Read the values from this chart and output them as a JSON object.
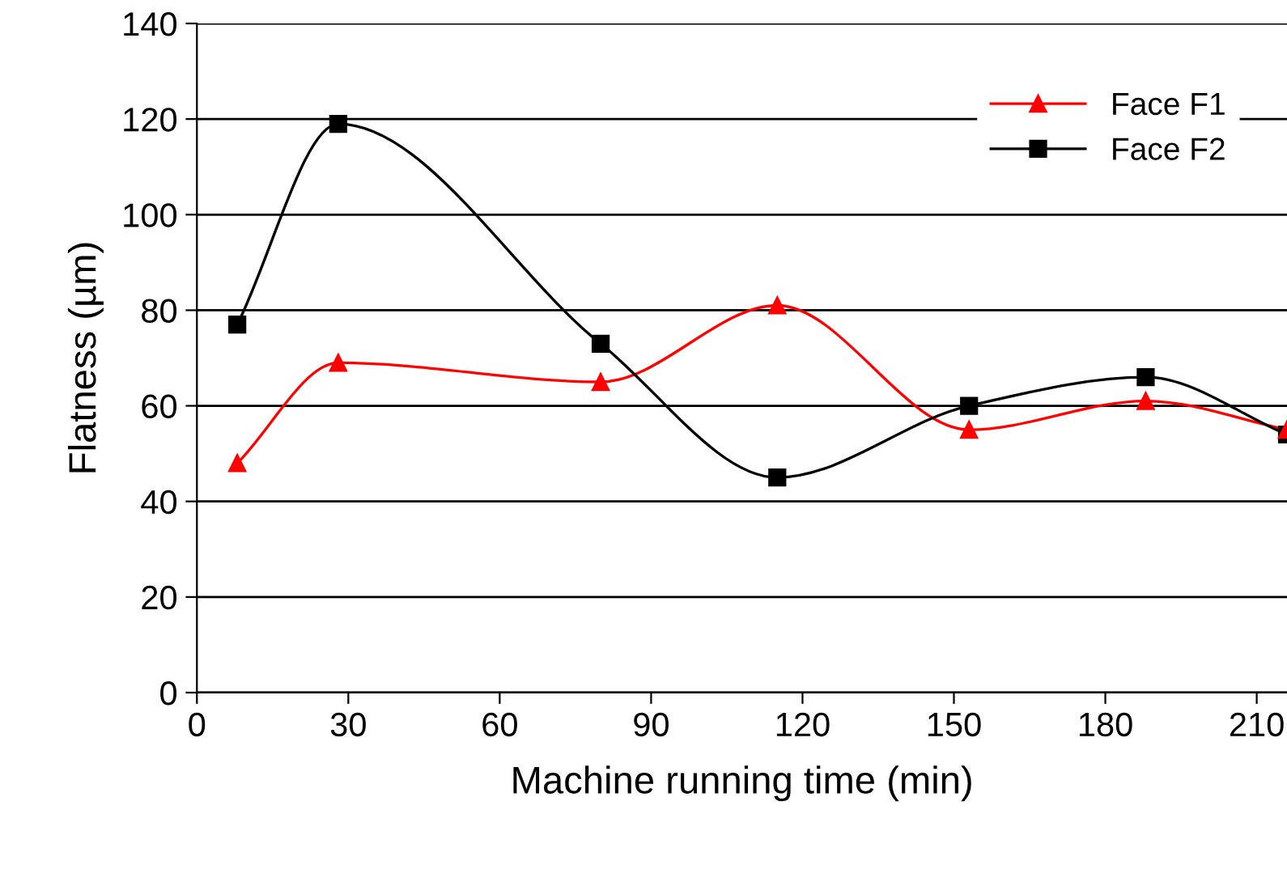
{
  "chart_data": {
    "type": "line",
    "xlabel": "Machine running time (min)",
    "ylabel": "Flatness (µm)",
    "xlim": [
      0,
      216
    ],
    "xticks": [
      0,
      30,
      60,
      90,
      120,
      150,
      180,
      210
    ],
    "ylim": [
      0,
      140
    ],
    "yticks": [
      0,
      20,
      40,
      60,
      80,
      100,
      120,
      140
    ],
    "grid": "y",
    "legend": "top right",
    "line_style": "solid",
    "series": [
      {
        "name": "Face F1",
        "color": "#ff0000",
        "marker": "triangle",
        "x": [
          8,
          28,
          80,
          115,
          153,
          188,
          216
        ],
        "values": [
          48,
          69,
          65,
          81,
          55,
          61,
          55
        ]
      },
      {
        "name": "Face F2",
        "color": "#000000",
        "marker": "square",
        "x": [
          8,
          28,
          80,
          115,
          153,
          188,
          216
        ],
        "values": [
          77,
          119,
          73,
          45,
          60,
          66,
          54
        ]
      }
    ]
  }
}
